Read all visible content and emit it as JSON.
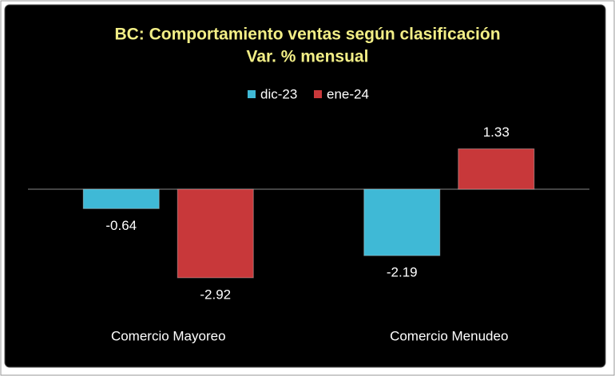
{
  "chart_data": {
    "type": "bar",
    "title": "BC: Comportamiento ventas según clasificación",
    "subtitle": "Var. % mensual",
    "categories": [
      "Comercio Mayoreo",
      "Comercio Menudeo"
    ],
    "series": [
      {
        "name": "dic-23",
        "color": "#3fb9d6",
        "values": [
          -0.64,
          -2.19
        ]
      },
      {
        "name": "ene-24",
        "color": "#c8383a",
        "values": [
          -2.92,
          1.33
        ]
      }
    ],
    "legend": "top"
  }
}
